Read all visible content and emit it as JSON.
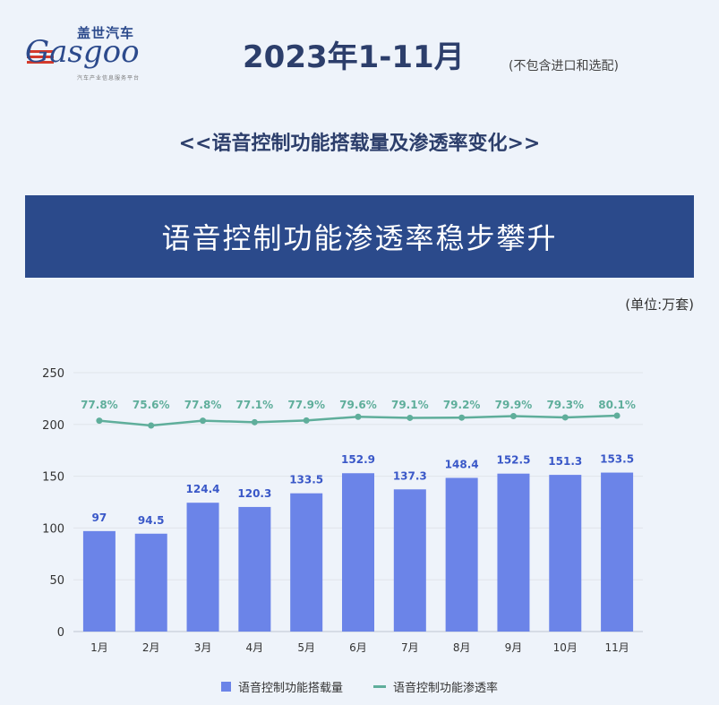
{
  "brand": {
    "name_cn": "盖世汽车",
    "name_en": "Gasgoo",
    "tagline": "汽车产业信息服务平台"
  },
  "header": {
    "title": "2023年1-11月",
    "note": "(不包含进口和选配)"
  },
  "subtitle": "<<语音控制功能搭载量及渗透率变化>>",
  "banner": "语音控制功能渗透率稳步攀升",
  "unit": "(单位:万套)",
  "colors": {
    "bar": "#6b84e8",
    "line": "#5fae9b",
    "banner": "#2b4a8b"
  },
  "legend": {
    "bar": "语音控制功能搭载量",
    "line": "语音控制功能渗透率"
  },
  "chart_data": {
    "type": "bar",
    "categories": [
      "1月",
      "2月",
      "3月",
      "4月",
      "5月",
      "6月",
      "7月",
      "8月",
      "9月",
      "10月",
      "11月"
    ],
    "series": [
      {
        "name": "语音控制功能搭载量",
        "type": "bar",
        "values": [
          97,
          94.5,
          124.4,
          120.3,
          133.5,
          152.9,
          137.3,
          148.4,
          152.5,
          151.3,
          153.5
        ],
        "labels": [
          "97",
          "94.5",
          "124.4",
          "120.3",
          "133.5",
          "152.9",
          "137.3",
          "148.4",
          "152.5",
          "151.3",
          "153.5"
        ]
      },
      {
        "name": "语音控制功能渗透率",
        "type": "line",
        "values": [
          77.8,
          75.6,
          77.8,
          77.1,
          77.9,
          79.6,
          79.1,
          79.2,
          79.9,
          79.3,
          80.1
        ],
        "labels": [
          "77.8%",
          "75.6%",
          "77.8%",
          "77.1%",
          "77.9%",
          "79.6%",
          "79.1%",
          "79.2%",
          "79.9%",
          "79.3%",
          "80.1%"
        ]
      }
    ],
    "yticks": [
      "0",
      "50",
      "100",
      "150",
      "200",
      "250"
    ],
    "ylim": [
      0,
      250
    ]
  }
}
